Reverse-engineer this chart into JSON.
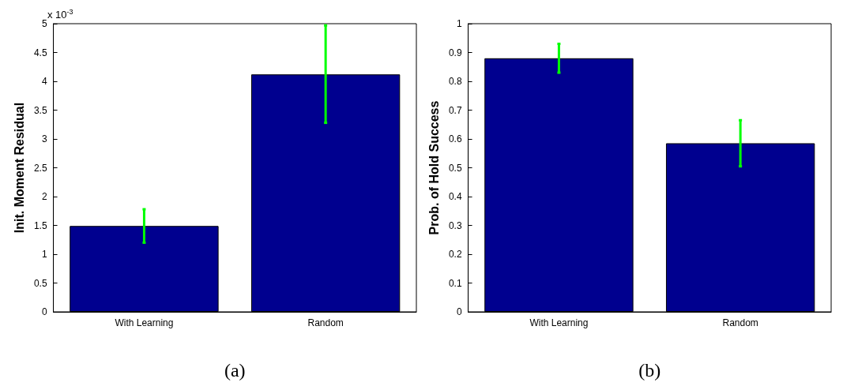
{
  "chart_data": [
    {
      "type": "bar",
      "categories": [
        "With Learning",
        "Random"
      ],
      "values": [
        1.49,
        4.12
      ],
      "color": "#00008f",
      "errors": [
        [
          1.2,
          1.78
        ],
        [
          3.28,
          4.97
        ]
      ],
      "ylabel": "Init. Moment Residual",
      "xlabel": "(a)",
      "ylim": [
        0,
        5
      ],
      "yticks": [
        0,
        0.5,
        1,
        1.5,
        2,
        2.5,
        3,
        3.5,
        4,
        4.5,
        5
      ],
      "annotations": [
        "x 10$^{-3}$"
      ]
    },
    {
      "type": "bar",
      "categories": [
        "With Learning",
        "Random"
      ],
      "values": [
        0.88,
        0.585
      ],
      "color": "#00008f",
      "errors": [
        [
          0.83,
          0.93
        ],
        [
          0.505,
          0.665
        ]
      ],
      "ylabel": "Prob. of Hold Success",
      "xlabel": "(b)",
      "ylim": [
        0,
        1
      ],
      "yticks": [
        0,
        0.1,
        0.2,
        0.3,
        0.4,
        0.5,
        0.6,
        0.7,
        0.8,
        0.9,
        1
      ]
    }
  ]
}
